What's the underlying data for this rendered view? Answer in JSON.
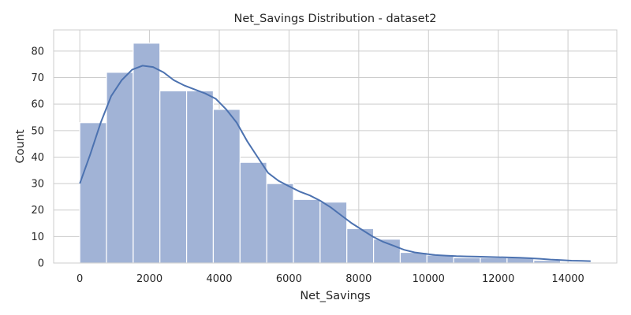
{
  "chart_data": {
    "type": "histogram",
    "title": "Net_Savings Distribution - dataset2",
    "xlabel": "Net_Savings",
    "ylabel": "Count",
    "xlim": [
      -750,
      15400
    ],
    "ylim": [
      0,
      88
    ],
    "xticks": [
      0,
      2000,
      4000,
      6000,
      8000,
      10000,
      12000,
      14000
    ],
    "yticks": [
      0,
      10,
      20,
      30,
      40,
      50,
      60,
      70,
      80
    ],
    "grid": true,
    "bins": [
      {
        "x0": 0,
        "x1": 766,
        "count": 53
      },
      {
        "x0": 766,
        "x1": 1532,
        "count": 72
      },
      {
        "x0": 1532,
        "x1": 2297,
        "count": 83
      },
      {
        "x0": 2297,
        "x1": 3063,
        "count": 65
      },
      {
        "x0": 3063,
        "x1": 3829,
        "count": 65
      },
      {
        "x0": 3829,
        "x1": 4595,
        "count": 58
      },
      {
        "x0": 4595,
        "x1": 5361,
        "count": 38
      },
      {
        "x0": 5361,
        "x1": 6126,
        "count": 30
      },
      {
        "x0": 6126,
        "x1": 6892,
        "count": 24
      },
      {
        "x0": 6892,
        "x1": 7658,
        "count": 23
      },
      {
        "x0": 7658,
        "x1": 8424,
        "count": 13
      },
      {
        "x0": 8424,
        "x1": 9190,
        "count": 9
      },
      {
        "x0": 9190,
        "x1": 9955,
        "count": 4
      },
      {
        "x0": 9955,
        "x1": 10721,
        "count": 3
      },
      {
        "x0": 10721,
        "x1": 11487,
        "count": 2
      },
      {
        "x0": 11487,
        "x1": 12253,
        "count": 2
      },
      {
        "x0": 12253,
        "x1": 13019,
        "count": 2
      },
      {
        "x0": 13019,
        "x1": 13784,
        "count": 1
      },
      {
        "x0": 13784,
        "x1": 14550,
        "count": 0
      }
    ],
    "kde": [
      [
        0,
        30
      ],
      [
        300,
        41
      ],
      [
        600,
        53
      ],
      [
        900,
        63
      ],
      [
        1200,
        69
      ],
      [
        1500,
        73
      ],
      [
        1800,
        74.5
      ],
      [
        2100,
        74
      ],
      [
        2400,
        72
      ],
      [
        2700,
        69
      ],
      [
        3000,
        67
      ],
      [
        3300,
        65.5
      ],
      [
        3600,
        64
      ],
      [
        3900,
        62
      ],
      [
        4200,
        58
      ],
      [
        4500,
        53
      ],
      [
        4800,
        46
      ],
      [
        5100,
        40
      ],
      [
        5400,
        34
      ],
      [
        5700,
        31
      ],
      [
        6000,
        29
      ],
      [
        6300,
        27
      ],
      [
        6600,
        25.5
      ],
      [
        6900,
        23.5
      ],
      [
        7200,
        21
      ],
      [
        7500,
        18
      ],
      [
        7800,
        15
      ],
      [
        8100,
        12.5
      ],
      [
        8400,
        10
      ],
      [
        8700,
        8
      ],
      [
        9000,
        6.5
      ],
      [
        9300,
        5
      ],
      [
        9600,
        4
      ],
      [
        9900,
        3.5
      ],
      [
        10200,
        3
      ],
      [
        10500,
        2.8
      ],
      [
        10800,
        2.6
      ],
      [
        11100,
        2.5
      ],
      [
        11400,
        2.4
      ],
      [
        11700,
        2.3
      ],
      [
        12000,
        2.2
      ],
      [
        12300,
        2.1
      ],
      [
        12600,
        2.0
      ],
      [
        12900,
        1.8
      ],
      [
        13200,
        1.6
      ],
      [
        13500,
        1.3
      ],
      [
        13800,
        1.1
      ],
      [
        14100,
        0.9
      ],
      [
        14400,
        0.8
      ],
      [
        14650,
        0.7
      ]
    ],
    "colors": {
      "bar_fill": "#a1b3d6",
      "bar_edge": "#ffffff",
      "kde_line": "#4c72b0",
      "grid": "#cccccc",
      "frame": "#cccccc"
    }
  }
}
